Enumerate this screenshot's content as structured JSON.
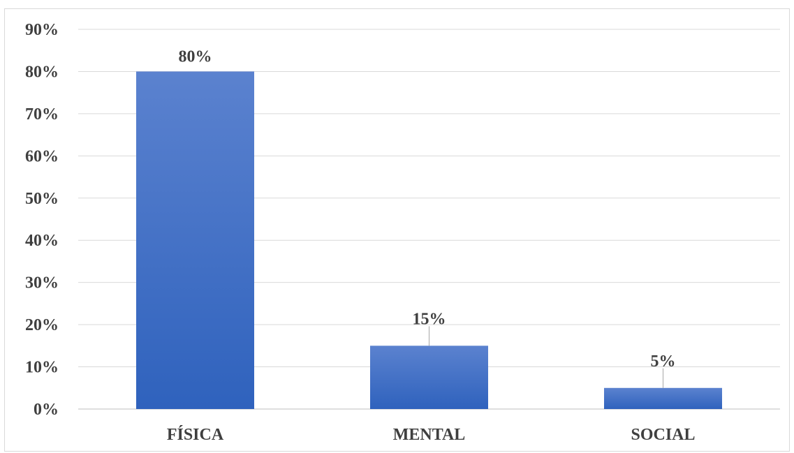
{
  "chart_data": {
    "type": "bar",
    "categories": [
      "FÍSICA",
      "MENTAL",
      "SOCIAL"
    ],
    "values": [
      80,
      15,
      5
    ],
    "data_labels": [
      "80%",
      "15%",
      "5%"
    ],
    "ylim": [
      0,
      90
    ],
    "y_ticks": [
      "0%",
      "10%",
      "20%",
      "30%",
      "40%",
      "50%",
      "60%",
      "70%",
      "80%",
      "90%"
    ],
    "grid": true,
    "legend": "none",
    "colors": {
      "bar_top": "#5b82cf",
      "bar_bottom": "#2f62bd",
      "grid": "#d9d9d9",
      "text": "#3f3f3f"
    }
  }
}
